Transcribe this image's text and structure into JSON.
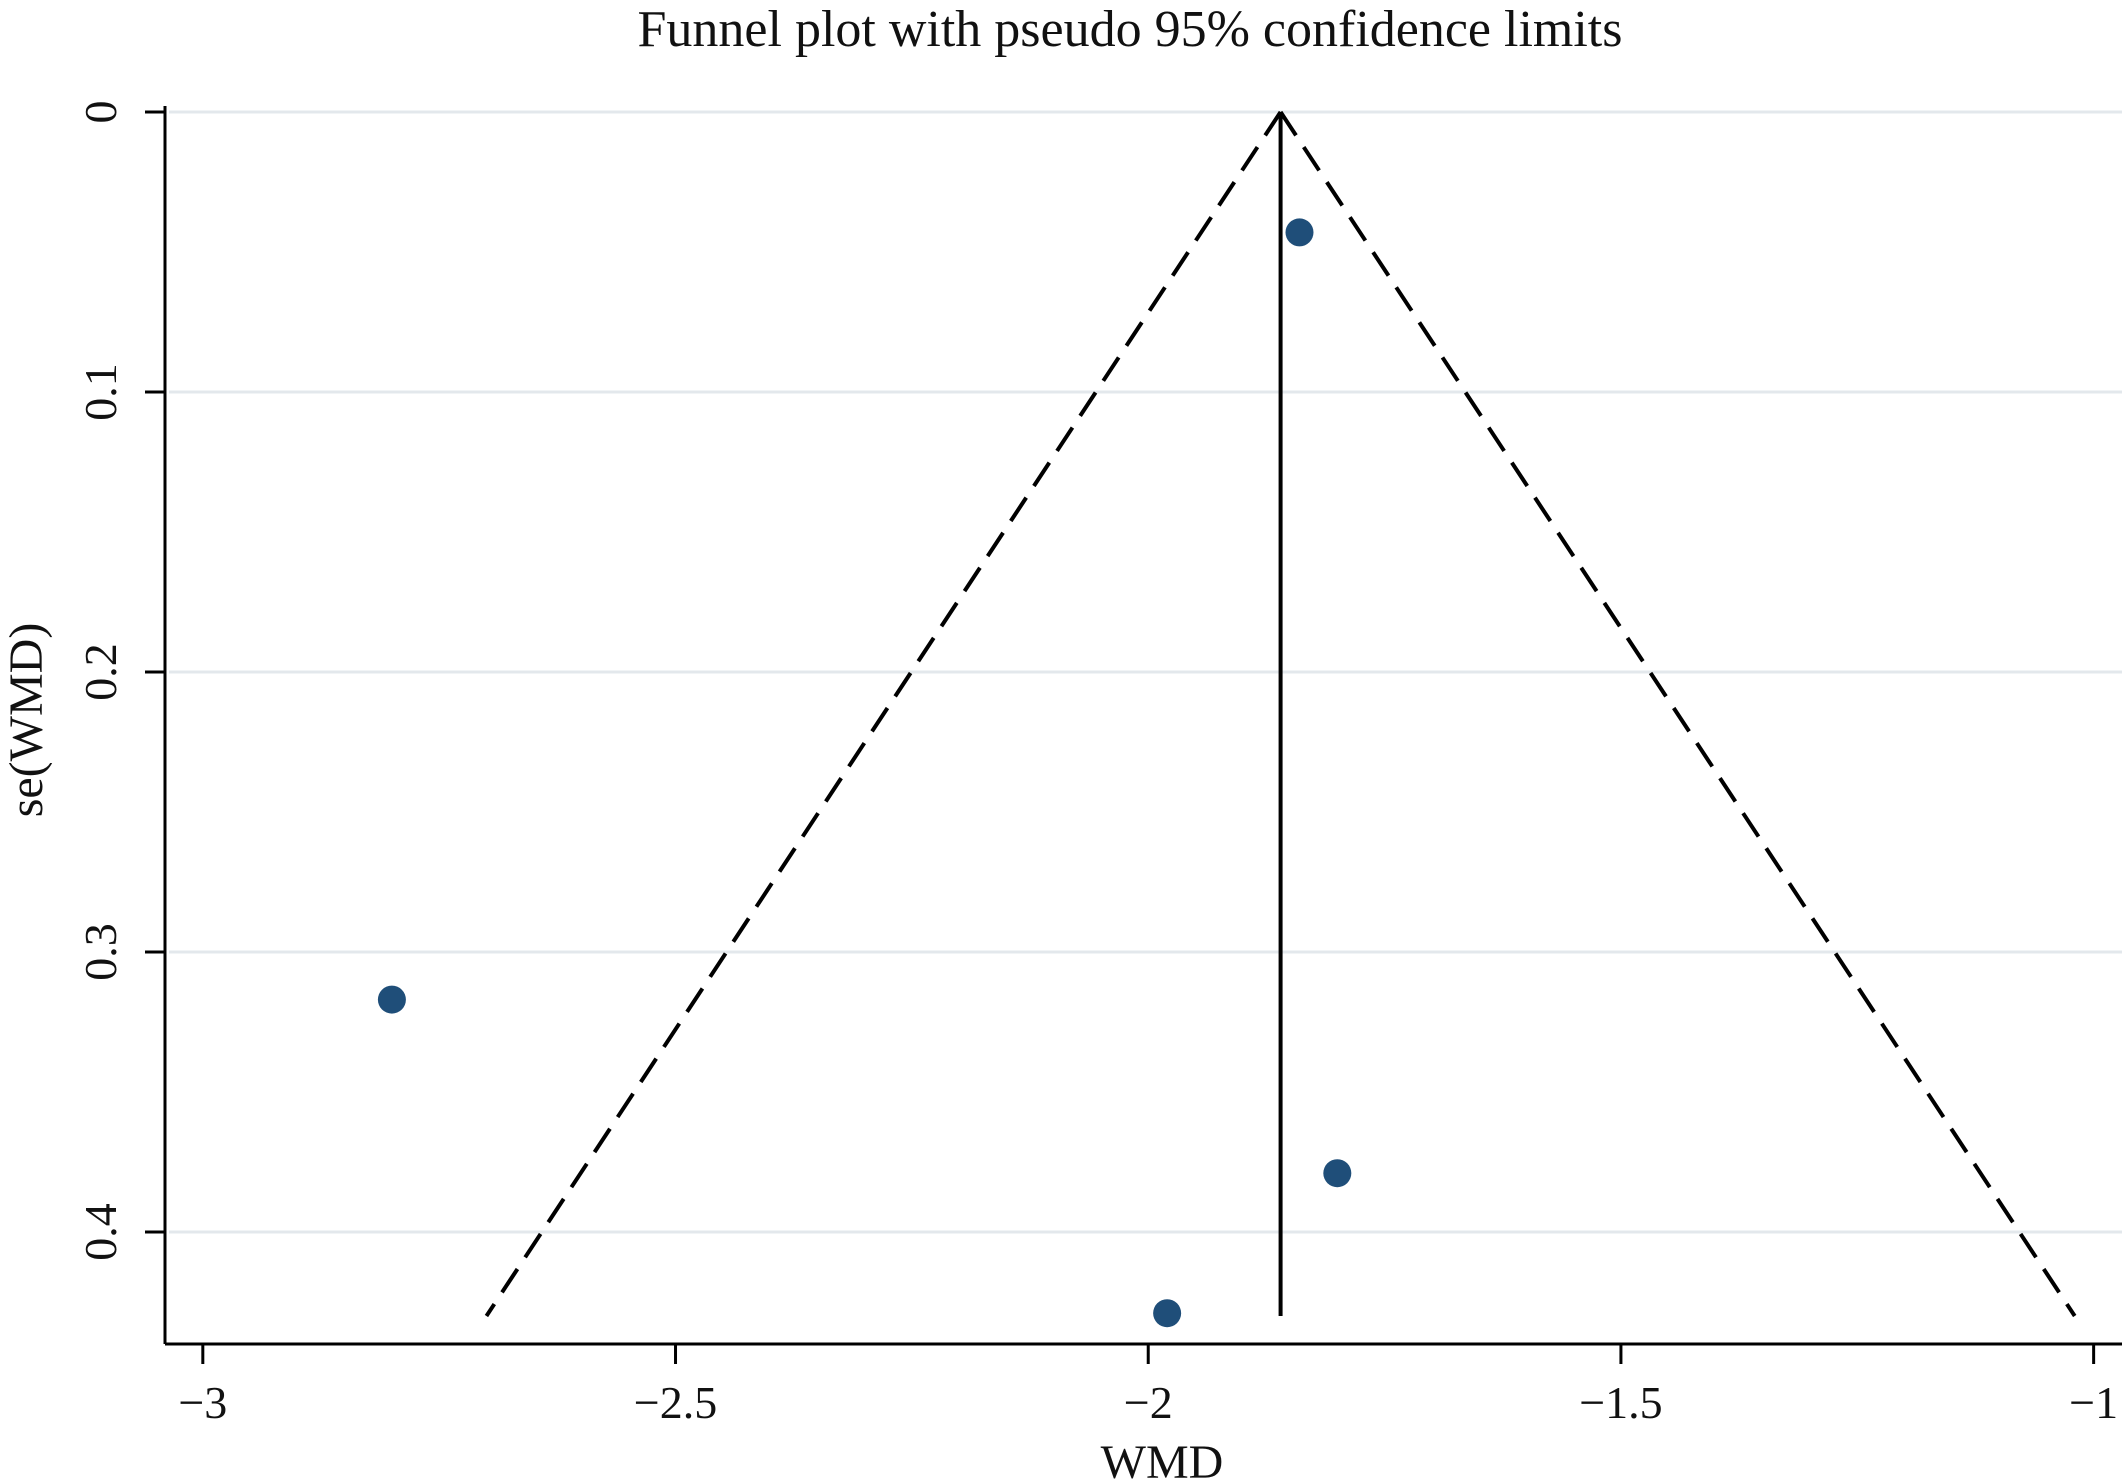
{
  "chart_data": {
    "type": "scatter",
    "title": "Funnel plot with pseudo 95% confidence limits",
    "xlabel": "WMD",
    "ylabel": "se(WMD)",
    "xlim": [
      -3.04,
      -0.97
    ],
    "ylim_reversed": [
      0,
      0.44
    ],
    "y_axis_reversed": true,
    "grid": "horizontal",
    "x_ticks": [
      -3,
      -2.5,
      -2,
      -1.5,
      -1
    ],
    "x_tick_labels": [
      "−3",
      "−2.5",
      "−2",
      "−1.5",
      "−1"
    ],
    "y_ticks": [
      0,
      0.1,
      0.2,
      0.3,
      0.4
    ],
    "y_tick_labels": [
      "0",
      "0.1",
      "0.2",
      "0.3",
      "0.4"
    ],
    "pooled_estimate": -1.86,
    "funnel_limits": {
      "apex": {
        "x": -1.86,
        "y": 0
      },
      "se_max": 0.43,
      "left_end_x": -2.7,
      "right_end_x": -1.02
    },
    "points": [
      {
        "x": -1.84,
        "y": 0.043
      },
      {
        "x": -2.8,
        "y": 0.317
      },
      {
        "x": -1.8,
        "y": 0.379
      },
      {
        "x": -1.98,
        "y": 0.429
      }
    ],
    "colors": {
      "point": "#1f4e79",
      "line": "#000000",
      "grid": "#e3e8ec",
      "axis": "#000000"
    }
  }
}
